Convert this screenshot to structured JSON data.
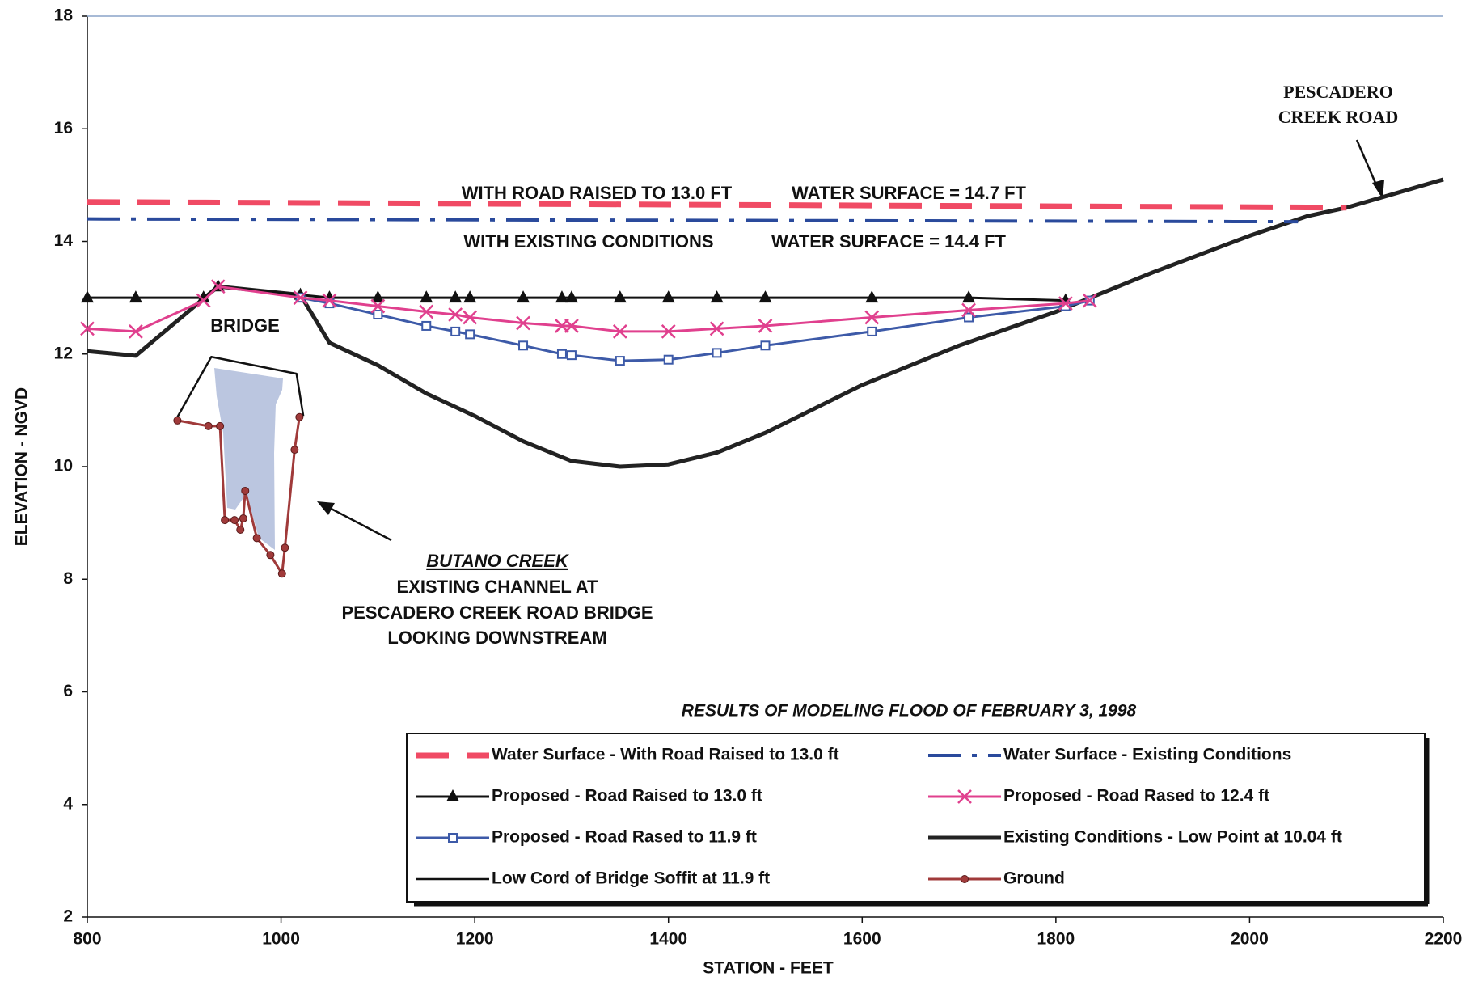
{
  "chart_data": {
    "type": "line",
    "title": "RESULTS OF MODELING FLOOD OF FEBRUARY 3, 1998",
    "x_label": "STATION - FEET",
    "y_label": "ELEVATION - NGVD",
    "xlim": [
      800,
      2200
    ],
    "ylim": [
      2,
      18
    ],
    "xticks": [
      800,
      1000,
      1200,
      1400,
      1600,
      1800,
      2000,
      2200
    ],
    "yticks": [
      2,
      4,
      6,
      8,
      10,
      12,
      14,
      16,
      18
    ],
    "grid": false,
    "annotations": [
      "WITH ROAD RAISED TO 13.0 FT",
      "WATER SURFACE = 14.7 FT",
      "WITH EXISTING CONDITIONS",
      "WATER SURFACE = 14.4 FT",
      "BRIDGE",
      "PESCADERO",
      "CREEK ROAD",
      "BUTANO CREEK",
      "EXISTING CHANNEL AT",
      "PESCADERO CREEK ROAD BRIDGE",
      "LOOKING DOWNSTREAM"
    ],
    "series": [
      {
        "name": "Water Surface - With Road Raised to 13.0 ft",
        "color": "#f04a64",
        "linestyle": "dashed",
        "marker": null,
        "x": [
          800,
          2100
        ],
        "values": [
          14.7,
          14.6
        ]
      },
      {
        "name": "Water Surface - Existing Conditions",
        "color": "#2a4a9c",
        "linestyle": "dashdot",
        "marker": null,
        "x": [
          800,
          2050
        ],
        "values": [
          14.4,
          14.35
        ]
      },
      {
        "name": "Proposed - Road Raised to 13.0 ft",
        "color": "#111111",
        "linestyle": "solid",
        "marker": "triangle",
        "x": [
          800,
          850,
          920,
          935,
          1020,
          1050,
          1100,
          1150,
          1180,
          1195,
          1250,
          1290,
          1300,
          1350,
          1400,
          1450,
          1500,
          1610,
          1710,
          1810
        ],
        "values": [
          13.0,
          13.0,
          13.0,
          13.2,
          13.05,
          13.0,
          13.0,
          13.0,
          13.0,
          13.0,
          13.0,
          13.0,
          13.0,
          13.0,
          13.0,
          13.0,
          13.0,
          13.0,
          13.0,
          12.95
        ]
      },
      {
        "name": "Proposed - Road Rased to 12.4 ft",
        "color": "#e0408e",
        "linestyle": "solid",
        "marker": "x",
        "x": [
          800,
          850,
          920,
          935,
          1020,
          1050,
          1100,
          1150,
          1180,
          1195,
          1250,
          1290,
          1300,
          1350,
          1400,
          1450,
          1500,
          1610,
          1710,
          1810,
          1835
        ],
        "values": [
          12.45,
          12.4,
          12.95,
          13.2,
          13.0,
          12.95,
          12.85,
          12.75,
          12.7,
          12.65,
          12.55,
          12.5,
          12.5,
          12.4,
          12.4,
          12.45,
          12.5,
          12.65,
          12.78,
          12.9,
          12.95
        ]
      },
      {
        "name": "Proposed - Road Rased to 11.9 ft",
        "color": "#3d5aa8",
        "linestyle": "solid",
        "marker": "square",
        "x": [
          1020,
          1050,
          1100,
          1150,
          1180,
          1195,
          1250,
          1290,
          1300,
          1350,
          1400,
          1450,
          1500,
          1610,
          1710,
          1810,
          1835
        ],
        "values": [
          13.0,
          12.9,
          12.7,
          12.5,
          12.4,
          12.35,
          12.15,
          12.0,
          11.98,
          11.88,
          11.9,
          12.02,
          12.15,
          12.4,
          12.65,
          12.85,
          12.95
        ]
      },
      {
        "name": "Existing Conditions - Low Point at 10.04 ft",
        "color": "#222222",
        "linestyle": "thick",
        "marker": null,
        "x": [
          800,
          850,
          935,
          1020,
          1050,
          1100,
          1150,
          1200,
          1250,
          1300,
          1350,
          1400,
          1450,
          1500,
          1600,
          1700,
          1800,
          1900,
          2000,
          2060,
          2100,
          2200
        ],
        "values": [
          12.05,
          11.97,
          13.2,
          13.05,
          12.2,
          11.8,
          11.3,
          10.9,
          10.45,
          10.1,
          10.0,
          10.04,
          10.25,
          10.6,
          11.45,
          12.15,
          12.75,
          13.45,
          14.1,
          14.45,
          14.6,
          15.1
        ]
      },
      {
        "name": "Low Cord of Bridge Soffit at 11.9 ft",
        "color": "#111111",
        "linestyle": "thin",
        "marker": null,
        "x": [
          891,
          928,
          1016,
          1023
        ],
        "values": [
          10.82,
          11.95,
          11.65,
          10.9
        ]
      },
      {
        "name": "Ground",
        "color": "#a03a3a",
        "linestyle": "solid",
        "marker": "circle",
        "x": [
          893,
          925,
          937,
          942,
          952,
          958,
          961,
          963,
          975,
          989,
          1001,
          1004,
          1014,
          1019
        ],
        "values": [
          10.82,
          10.72,
          10.72,
          9.05,
          9.05,
          8.88,
          9.08,
          9.57,
          8.73,
          8.43,
          8.1,
          8.56,
          10.3,
          10.88
        ]
      }
    ]
  }
}
